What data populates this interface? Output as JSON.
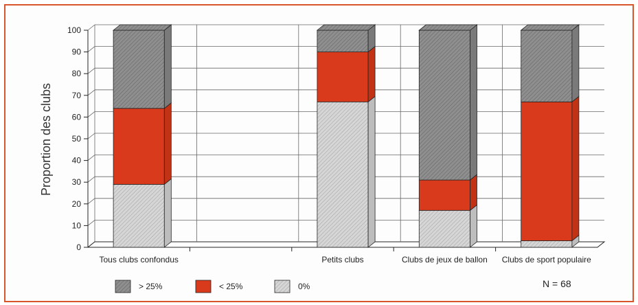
{
  "chart_data": {
    "type": "bar",
    "stacked": true,
    "ylabel": "Proportion des clubs",
    "ylim": [
      0,
      100
    ],
    "yticks": [
      0,
      10,
      20,
      30,
      40,
      50,
      60,
      70,
      80,
      90,
      100
    ],
    "categories": [
      "Tous clubs confondus",
      "",
      "Petits clubs",
      "Clubs de jeux de ballon",
      "Clubs de sport populaire"
    ],
    "series": [
      {
        "name": "0%",
        "values": [
          29,
          null,
          67,
          17,
          3
        ],
        "color": "#c8c8c8"
      },
      {
        "name": "< 25%",
        "values": [
          35,
          null,
          23,
          14,
          64
        ],
        "color": "#d93a1c"
      },
      {
        "name": "> 25%",
        "values": [
          36,
          null,
          10,
          69,
          33
        ],
        "color": "#8f8f8f"
      }
    ],
    "legend_order": [
      "> 25%",
      "< 25%",
      "0%"
    ],
    "legend_position": "bottom",
    "note": "N = 68",
    "grid": true
  },
  "colors": {
    "border": "#d8542a",
    "grid": "#444444"
  }
}
